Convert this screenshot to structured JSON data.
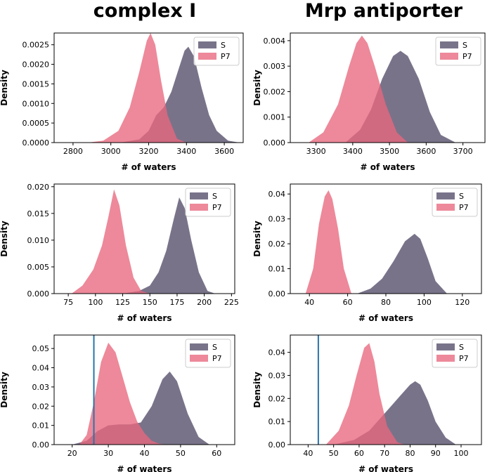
{
  "column_titles": [
    "complex I",
    "Mrp antiporter"
  ],
  "colors": {
    "S": "#5b5470",
    "P7": "#e8687e",
    "marker_line": "#2a73a8"
  },
  "chart_data": [
    {
      "type": "area",
      "name": "complex-i-top",
      "xlabel": "# of waters",
      "ylabel": "Density",
      "xlim": [
        2700,
        3700
      ],
      "ylim": [
        0,
        0.0028
      ],
      "xticks": [
        2800,
        3000,
        3200,
        3400,
        3600
      ],
      "yticks": [
        0.0,
        0.0005,
        0.001,
        0.0015,
        0.002,
        0.0025
      ],
      "ytick_labels": [
        "0.0000",
        "0.0005",
        "0.0010",
        "0.0015",
        "0.0020",
        "0.0025"
      ],
      "legend": [
        "S",
        "P7"
      ],
      "legend_position": "upper-right",
      "series": [
        {
          "name": "P7",
          "x": [
            2880,
            2960,
            3040,
            3100,
            3150,
            3190,
            3210,
            3235,
            3265,
            3300,
            3350,
            3400
          ],
          "values": [
            0,
            5e-05,
            0.0003,
            0.0009,
            0.0018,
            0.0026,
            0.0028,
            0.0025,
            0.0016,
            0.0007,
            0.0001,
            0
          ]
        },
        {
          "name": "S",
          "x": [
            3050,
            3150,
            3200,
            3240,
            3280,
            3320,
            3360,
            3390,
            3410,
            3440,
            3480,
            3520,
            3560,
            3620,
            3680
          ],
          "values": [
            0,
            8e-05,
            0.0003,
            0.0007,
            0.0009,
            0.0013,
            0.0019,
            0.00235,
            0.00245,
            0.0022,
            0.0014,
            0.0007,
            0.0003,
            5e-05,
            0
          ]
        }
      ]
    },
    {
      "type": "area",
      "name": "mrp-top",
      "xlabel": "# of waters",
      "ylabel": "Density",
      "xlim": [
        3230,
        3760
      ],
      "ylim": [
        0,
        0.0043
      ],
      "xticks": [
        3300,
        3400,
        3500,
        3600,
        3700
      ],
      "yticks": [
        0.0,
        0.001,
        0.002,
        0.003,
        0.004
      ],
      "ytick_labels": [
        "0.000",
        "0.001",
        "0.002",
        "0.003",
        "0.004"
      ],
      "legend": [
        "S",
        "P7"
      ],
      "legend_position": "upper-right",
      "series": [
        {
          "name": "P7",
          "x": [
            3280,
            3320,
            3360,
            3390,
            3410,
            3425,
            3440,
            3460,
            3490,
            3520,
            3550
          ],
          "values": [
            0,
            0.0004,
            0.0015,
            0.003,
            0.0039,
            0.0042,
            0.0039,
            0.003,
            0.0015,
            0.0004,
            0
          ]
        },
        {
          "name": "S",
          "x": [
            3380,
            3420,
            3450,
            3480,
            3510,
            3530,
            3550,
            3580,
            3610,
            3640,
            3680
          ],
          "values": [
            0,
            0.0005,
            0.0013,
            0.0025,
            0.0034,
            0.0036,
            0.0034,
            0.0025,
            0.0012,
            0.0003,
            0
          ]
        }
      ]
    },
    {
      "type": "area",
      "name": "complex-i-mid",
      "xlabel": "# of waters",
      "ylabel": "Density",
      "xlim": [
        62,
        228
      ],
      "ylim": [
        0,
        0.0205
      ],
      "xticks": [
        75,
        100,
        125,
        150,
        175,
        200,
        225
      ],
      "yticks": [
        0.0,
        0.005,
        0.01,
        0.015,
        0.02
      ],
      "ytick_labels": [
        "0.000",
        "0.005",
        "0.010",
        "0.015",
        "0.020"
      ],
      "legend": [
        "S",
        "P7"
      ],
      "legend_position": "upper-right",
      "series": [
        {
          "name": "P7",
          "x": [
            78,
            88,
            98,
            106,
            112,
            117,
            122,
            128,
            135,
            142,
            150
          ],
          "values": [
            0,
            0.0015,
            0.0045,
            0.009,
            0.0145,
            0.0195,
            0.0165,
            0.009,
            0.003,
            0.0005,
            0
          ]
        },
        {
          "name": "S",
          "x": [
            125,
            140,
            150,
            158,
            165,
            172,
            177,
            182,
            188,
            195,
            203,
            210
          ],
          "values": [
            0,
            0.0005,
            0.0015,
            0.004,
            0.008,
            0.014,
            0.018,
            0.016,
            0.01,
            0.004,
            0.0005,
            0
          ]
        }
      ]
    },
    {
      "type": "area",
      "name": "mrp-mid",
      "xlabel": "# of waters",
      "ylabel": "Density",
      "xlim": [
        30,
        130
      ],
      "ylim": [
        0,
        0.044
      ],
      "xticks": [
        40,
        60,
        80,
        100,
        120
      ],
      "yticks": [
        0.0,
        0.01,
        0.02,
        0.03,
        0.04
      ],
      "ytick_labels": [
        "0.00",
        "0.01",
        "0.02",
        "0.03",
        "0.04"
      ],
      "legend": [
        "S",
        "P7"
      ],
      "legend_position": "upper-right",
      "series": [
        {
          "name": "P7",
          "x": [
            38,
            42,
            45,
            48,
            50,
            52,
            55,
            58,
            62
          ],
          "values": [
            0,
            0.01,
            0.028,
            0.039,
            0.0415,
            0.038,
            0.026,
            0.01,
            0
          ]
        },
        {
          "name": "S",
          "x": [
            65,
            72,
            78,
            84,
            90,
            95,
            98,
            102,
            106,
            112
          ],
          "values": [
            0,
            0.002,
            0.006,
            0.013,
            0.021,
            0.024,
            0.022,
            0.014,
            0.005,
            0
          ]
        }
      ]
    },
    {
      "type": "area",
      "name": "complex-i-bottom",
      "xlabel": "# of waters",
      "ylabel": "Density",
      "xlim": [
        15,
        65
      ],
      "ylim": [
        0,
        0.057
      ],
      "xticks": [
        20,
        30,
        40,
        50,
        60
      ],
      "yticks": [
        0.0,
        0.01,
        0.02,
        0.03,
        0.04,
        0.05
      ],
      "ytick_labels": [
        "0.00",
        "0.01",
        "0.02",
        "0.03",
        "0.04",
        "0.05"
      ],
      "legend": [
        "S",
        "P7"
      ],
      "legend_position": "upper-right",
      "vline_x": 26,
      "series": [
        {
          "name": "P7",
          "x": [
            22,
            24,
            26,
            28,
            30,
            32,
            34,
            36,
            38,
            40,
            42,
            44,
            46
          ],
          "values": [
            0,
            0.005,
            0.022,
            0.043,
            0.053,
            0.048,
            0.035,
            0.022,
            0.012,
            0.006,
            0.002,
            0.0005,
            0
          ]
        },
        {
          "name": "S",
          "x": [
            20,
            24,
            27,
            30,
            33,
            36,
            39,
            42,
            45,
            47,
            49,
            52,
            55,
            58
          ],
          "values": [
            0,
            0.002,
            0.007,
            0.01,
            0.0105,
            0.0105,
            0.0115,
            0.02,
            0.034,
            0.038,
            0.033,
            0.016,
            0.004,
            0
          ]
        }
      ]
    },
    {
      "type": "area",
      "name": "mrp-bottom",
      "xlabel": "# of waters",
      "ylabel": "Density",
      "xlim": [
        33,
        108
      ],
      "ylim": [
        0,
        0.0475
      ],
      "xticks": [
        40,
        50,
        60,
        70,
        80,
        90,
        100
      ],
      "yticks": [
        0.0,
        0.01,
        0.02,
        0.03,
        0.04
      ],
      "ytick_labels": [
        "0.00",
        "0.01",
        "0.02",
        "0.03",
        "0.04"
      ],
      "legend": [
        "S",
        "P7"
      ],
      "legend_position": "upper-right",
      "vline_x": 44,
      "series": [
        {
          "name": "P7",
          "x": [
            47,
            52,
            56,
            59,
            62,
            64,
            66,
            68,
            71,
            75,
            78
          ],
          "values": [
            0,
            0.006,
            0.017,
            0.03,
            0.042,
            0.044,
            0.036,
            0.022,
            0.008,
            0.001,
            0
          ]
        },
        {
          "name": "S",
          "x": [
            50,
            58,
            64,
            68,
            72,
            76,
            80,
            82,
            84,
            87,
            90,
            94,
            98
          ],
          "values": [
            0,
            0.002,
            0.006,
            0.011,
            0.016,
            0.021,
            0.026,
            0.0275,
            0.026,
            0.019,
            0.01,
            0.003,
            0
          ]
        }
      ]
    }
  ]
}
